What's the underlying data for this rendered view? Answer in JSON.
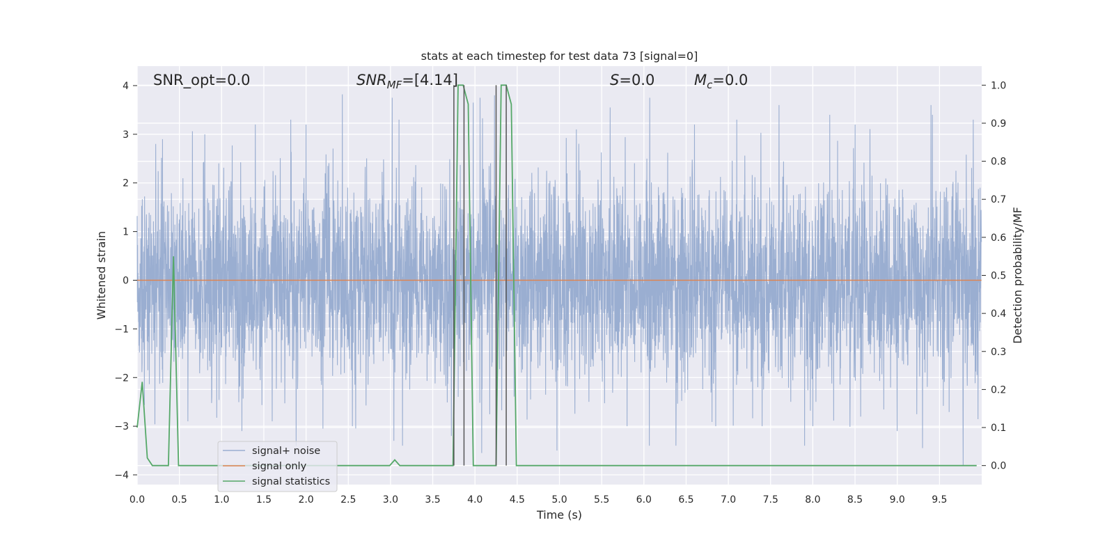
{
  "chart_data": {
    "type": "line",
    "title": "stats at each timestep for test data 73 [signal=0]",
    "xlabel": "Time (s)",
    "ylabel": "Whitened strain",
    "y2label": "Detection probability/MF",
    "xlim": [
      0,
      10
    ],
    "ylim": [
      -4.2,
      4.4
    ],
    "y2lim": [
      -0.05,
      1.05
    ],
    "xticks": [
      "0.0",
      "0.5",
      "1.0",
      "1.5",
      "2.0",
      "2.5",
      "3.0",
      "3.5",
      "4.0",
      "4.5",
      "5.0",
      "5.5",
      "6.0",
      "6.5",
      "7.0",
      "7.5",
      "8.0",
      "8.5",
      "9.0",
      "9.5"
    ],
    "xtick_values": [
      0,
      0.5,
      1,
      1.5,
      2,
      2.5,
      3,
      3.5,
      4,
      4.5,
      5,
      5.5,
      6,
      6.5,
      7,
      7.5,
      8,
      8.5,
      9,
      9.5
    ],
    "yticks": [
      "−4",
      "−3",
      "−2",
      "−1",
      "0",
      "1",
      "2",
      "3",
      "4"
    ],
    "ytick_values": [
      -4,
      -3,
      -2,
      -1,
      0,
      1,
      2,
      3,
      4
    ],
    "y2ticks": [
      "0.0",
      "0.1",
      "0.2",
      "0.3",
      "0.4",
      "0.5",
      "0.6",
      "0.7",
      "0.8",
      "0.9",
      "1.0"
    ],
    "y2tick_values": [
      0,
      0.1,
      0.2,
      0.3,
      0.4,
      0.5,
      0.6,
      0.7,
      0.8,
      0.9,
      1.0
    ],
    "grid": true,
    "legend_placement": "lower-left",
    "annotations": {
      "snr_opt": "SNR_opt=0.0",
      "snr_mf_base": "SNR",
      "snr_mf_sub": "MF",
      "snr_mf_value": "=[4.14]",
      "s_var": "S",
      "s_value": "=0.0",
      "mc_var": "M",
      "mc_sub": "c",
      "mc_value": "=0.0"
    },
    "series": [
      {
        "name": "signal+ noise",
        "color": "#9aaed1",
        "axis": "left",
        "kind": "noise",
        "points": 4096,
        "x_range": [
          0,
          9.9976
        ],
        "std": 1.0,
        "peaks": [
          [
            2.43,
            3.82
          ],
          [
            3.02,
            3.75
          ],
          [
            3.98,
            3.65
          ],
          [
            4.06,
            3.75
          ],
          [
            4.23,
            3.8
          ],
          [
            4.37,
            3.35
          ],
          [
            5.6,
            3.55
          ],
          [
            6.07,
            3.75
          ],
          [
            7.6,
            3.6
          ],
          [
            8.2,
            3.4
          ],
          [
            9.4,
            3.6
          ],
          [
            3.1,
            3.3
          ],
          [
            1.4,
            3.2
          ],
          [
            1.82,
            3.3
          ],
          [
            6.6,
            3.2
          ],
          [
            8.5,
            3.2
          ],
          [
            0.3,
            2.9
          ],
          [
            0.22,
            2.8
          ],
          [
            9.9,
            3.3
          ],
          [
            7.1,
            3.3
          ],
          [
            0.8,
            3.0
          ],
          [
            2.0,
            3.2
          ],
          [
            5.2,
            3.1
          ],
          [
            9.78,
            -3.8
          ],
          [
            4.08,
            -3.55
          ],
          [
            4.97,
            -3.5
          ],
          [
            6.38,
            -3.4
          ],
          [
            9.3,
            -3.45
          ],
          [
            3.04,
            -3.3
          ],
          [
            2.55,
            -3.0
          ],
          [
            1.24,
            -3.1
          ],
          [
            5.8,
            -3.0
          ],
          [
            3.72,
            -3.2
          ],
          [
            8.0,
            -3.0
          ],
          [
            0.6,
            -2.9
          ],
          [
            7.4,
            -3.0
          ],
          [
            9.0,
            -3.1
          ],
          [
            2.2,
            -3.05
          ],
          [
            6.85,
            -3.0
          ],
          [
            1.6,
            -2.9
          ]
        ]
      },
      {
        "name": "signal only",
        "color": "#dd8452",
        "axis": "left",
        "kind": "constant",
        "x": [
          0,
          9.9976
        ],
        "y": [
          0,
          0
        ]
      },
      {
        "name": "signal statistics",
        "color": "#55a868",
        "axis": "right",
        "kind": "line",
        "x": [
          0,
          0.06,
          0.12,
          0.18,
          0.37,
          0.43,
          0.49,
          2.99,
          3.05,
          3.11,
          3.74,
          3.8,
          3.86,
          3.92,
          3.98,
          4.04,
          4.25,
          4.31,
          4.37,
          4.43,
          4.49,
          9.94
        ],
        "y": [
          0.1,
          0.22,
          0.02,
          0.0,
          0.0,
          0.55,
          0.0,
          0.0,
          0.015,
          0.0,
          0.0,
          1.0,
          1.0,
          0.95,
          0.0,
          0.0,
          0.0,
          1.0,
          1.0,
          0.95,
          0.0,
          0.0
        ]
      }
    ],
    "vertical_lines": [
      3.75,
      3.87,
      4.25,
      4.37
    ],
    "vertical_line_color": "#555555"
  }
}
